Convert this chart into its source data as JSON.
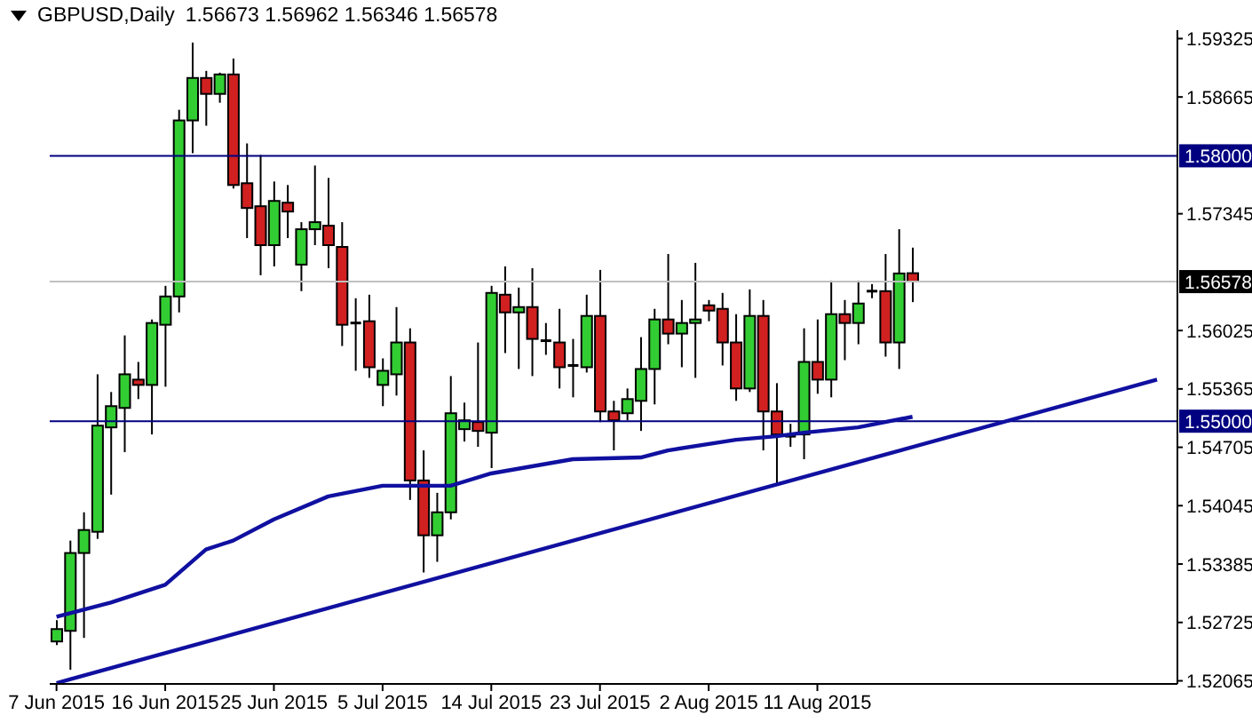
{
  "chart_data": {
    "type": "candlestick",
    "title": "GBPUSD,Daily",
    "annotations": [
      "1.56673 1.56962 1.56346 1.56578"
    ],
    "categories": [
      "7 Jun 2015",
      null,
      null,
      null,
      null,
      null,
      null,
      null,
      "16 Jun 2015",
      null,
      null,
      null,
      null,
      null,
      null,
      null,
      "25 Jun 2015",
      null,
      null,
      null,
      null,
      null,
      null,
      null,
      "5 Jul 2015",
      null,
      null,
      null,
      null,
      null,
      null,
      null,
      "14 Jul 2015",
      null,
      null,
      null,
      null,
      null,
      null,
      null,
      "23 Jul 2015",
      null,
      null,
      null,
      null,
      null,
      null,
      null,
      "2 Aug 2015",
      null,
      null,
      null,
      null,
      null,
      null,
      null,
      "11 Aug 2015",
      null,
      null,
      null,
      null,
      null,
      null,
      null,
      null,
      null,
      null,
      null,
      null,
      null,
      null,
      null,
      null,
      null,
      null,
      null,
      null,
      null,
      null,
      null,
      null,
      null,
      null
    ],
    "ohlc": [
      [
        1.5251,
        1.5275,
        1.5247,
        1.5265
      ],
      [
        1.5263,
        1.5365,
        1.5219,
        1.5351
      ],
      [
        1.5351,
        1.5397,
        1.5255,
        1.5377
      ],
      [
        1.5375,
        1.5553,
        1.5367,
        1.5495
      ],
      [
        1.5493,
        1.5533,
        1.5417,
        1.5517
      ],
      [
        1.5515,
        1.5597,
        1.5465,
        1.5553
      ],
      [
        1.5547,
        1.5567,
        1.5525,
        1.5541
      ],
      [
        1.5541,
        1.5615,
        1.5485,
        1.5611
      ],
      [
        1.5609,
        1.5653,
        1.5539,
        1.5641
      ],
      [
        1.5641,
        1.5852,
        1.5623,
        1.584
      ],
      [
        1.584,
        1.5928,
        1.5803,
        1.5888
      ],
      [
        1.5888,
        1.5896,
        1.5834,
        1.587
      ],
      [
        1.587,
        1.5894,
        1.586,
        1.5892
      ],
      [
        1.5892,
        1.591,
        1.5763,
        1.5767
      ],
      [
        1.5769,
        1.5814,
        1.5707,
        1.5741
      ],
      [
        1.5743,
        1.5801,
        1.5665,
        1.5699
      ],
      [
        1.5699,
        1.5771,
        1.5675,
        1.5749
      ],
      [
        1.5747,
        1.5767,
        1.5707,
        1.5737
      ],
      [
        1.5677,
        1.5725,
        1.5647,
        1.5717
      ],
      [
        1.5717,
        1.5789,
        1.5699,
        1.5725
      ],
      [
        1.5721,
        1.5775,
        1.5673,
        1.5699
      ],
      [
        1.5697,
        1.5725,
        1.5585,
        1.5609
      ],
      [
        1.5611,
        1.5639,
        1.5557,
        1.5611
      ],
      [
        1.5613,
        1.5643,
        1.5549,
        1.5561
      ],
      [
        1.5541,
        1.5571,
        1.5517,
        1.5557
      ],
      [
        1.5553,
        1.5629,
        1.5529,
        1.5589
      ],
      [
        1.5589,
        1.5605,
        1.5411,
        1.5433
      ],
      [
        1.5433,
        1.5467,
        1.5329,
        1.5371
      ],
      [
        1.5371,
        1.5419,
        1.5341,
        1.5397
      ],
      [
        1.5397,
        1.5551,
        1.5389,
        1.5509
      ],
      [
        1.5491,
        1.5521,
        1.5477,
        1.5501
      ],
      [
        1.5499,
        1.5589,
        1.5471,
        1.5489
      ],
      [
        1.5487,
        1.5653,
        1.5447,
        1.5645
      ],
      [
        1.5643,
        1.5675,
        1.5577,
        1.5623
      ],
      [
        1.5623,
        1.5651,
        1.5559,
        1.5629
      ],
      [
        1.5629,
        1.5673,
        1.5551,
        1.5593
      ],
      [
        1.5591,
        1.5611,
        1.5575,
        1.5591
      ],
      [
        1.5589,
        1.5627,
        1.5537,
        1.5561
      ],
      [
        1.5563,
        1.5593,
        1.5527,
        1.5563
      ],
      [
        1.5561,
        1.5643,
        1.5555,
        1.5619
      ],
      [
        1.5619,
        1.5671,
        1.5499,
        1.5511
      ],
      [
        1.5511,
        1.5523,
        1.5467,
        1.5501
      ],
      [
        1.5509,
        1.5537,
        1.5501,
        1.5525
      ],
      [
        1.5523,
        1.5595,
        1.5489,
        1.5559
      ],
      [
        1.5559,
        1.5627,
        1.5519,
        1.5615
      ],
      [
        1.5615,
        1.5689,
        1.5587,
        1.5599
      ],
      [
        1.5599,
        1.5637,
        1.5561,
        1.5611
      ],
      [
        1.5611,
        1.5679,
        1.5549,
        1.5615
      ],
      [
        1.5631,
        1.5637,
        1.5613,
        1.5625
      ],
      [
        1.5627,
        1.5645,
        1.5563,
        1.5589
      ],
      [
        1.5589,
        1.5621,
        1.5523,
        1.5537
      ],
      [
        1.5537,
        1.5649,
        1.5533,
        1.5619
      ],
      [
        1.5619,
        1.5637,
        1.5467,
        1.5511
      ],
      [
        1.5511,
        1.5543,
        1.5429,
        1.5485
      ],
      [
        1.5483,
        1.5497,
        1.5471,
        1.5483
      ],
      [
        1.5485,
        1.5605,
        1.5457,
        1.5567
      ],
      [
        1.5567,
        1.5615,
        1.5531,
        1.5547
      ],
      [
        1.5547,
        1.5659,
        1.5527,
        1.5621
      ],
      [
        1.5621,
        1.5637,
        1.5569,
        1.5611
      ],
      [
        1.5611,
        1.5659,
        1.5587,
        1.5633
      ],
      [
        1.5647,
        1.5655,
        1.5639,
        1.5647
      ],
      [
        1.5647,
        1.5689,
        1.5573,
        1.5589
      ],
      [
        1.5589,
        1.5717,
        1.5559,
        1.5667
      ],
      [
        1.56673,
        1.56962,
        1.56346,
        1.56578
      ],
      null,
      null,
      null,
      null,
      null,
      null,
      null,
      null,
      null,
      null,
      null,
      null,
      null,
      null,
      null,
      null,
      null,
      null,
      null
    ],
    "colors": [
      "#32cd32",
      "#32cd32",
      "#32cd32",
      "#32cd32",
      "#32cd32",
      "#32cd32",
      "#d02020",
      "#32cd32",
      "#32cd32",
      "#32cd32",
      "#32cd32",
      "#d02020",
      "#32cd32",
      "#d02020",
      "#d02020",
      "#d02020",
      "#32cd32",
      "#d02020",
      "#32cd32",
      "#32cd32",
      "#d02020",
      "#d02020",
      "#000000",
      "#d02020",
      "#32cd32",
      "#32cd32",
      "#d02020",
      "#d02020",
      "#32cd32",
      "#32cd32",
      "#32cd32",
      "#d02020",
      "#32cd32",
      "#d02020",
      "#32cd32",
      "#d02020",
      "#000000",
      "#d02020",
      "#000000",
      "#32cd32",
      "#d02020",
      "#d02020",
      "#32cd32",
      "#32cd32",
      "#32cd32",
      "#d02020",
      "#32cd32",
      "#32cd32",
      "#d02020",
      "#d02020",
      "#d02020",
      "#32cd32",
      "#d02020",
      "#d02020",
      "#000000",
      "#32cd32",
      "#d02020",
      "#32cd32",
      "#d02020",
      "#32cd32",
      "#000000",
      "#d02020",
      "#32cd32",
      "#d02020",
      null,
      null,
      null,
      null,
      null,
      null,
      null,
      null,
      null,
      null,
      null,
      null,
      null,
      null,
      null,
      null,
      null,
      null,
      null
    ],
    "series": [
      {
        "type": "line",
        "color": "#1010a0",
        "values": [
          1.5279,
          null,
          null,
          null,
          1.5295,
          null,
          null,
          null,
          1.5315,
          null,
          null,
          1.5355,
          null,
          1.5365,
          null,
          null,
          1.5389,
          null,
          null,
          null,
          1.5415,
          null,
          null,
          null,
          1.5427,
          null,
          null,
          null,
          null,
          1.5427,
          null,
          null,
          1.5441,
          null,
          null,
          1.5449,
          null,
          null,
          1.5457,
          null,
          null,
          null,
          null,
          1.5459,
          null,
          1.5467,
          null,
          null,
          null,
          null,
          1.5479,
          null,
          null,
          1.5483,
          null,
          1.5487,
          null,
          null,
          null,
          1.5493,
          null,
          null,
          null,
          1.5505,
          null,
          null,
          null,
          null,
          null,
          null,
          null,
          null,
          null,
          null,
          null,
          null,
          null,
          null,
          null,
          null,
          null,
          null,
          null
        ]
      },
      {
        "type": "line",
        "color": "#1010a0",
        "values": [
          1.5204,
          null,
          null,
          null,
          null,
          null,
          null,
          null,
          null,
          null,
          null,
          null,
          null,
          null,
          null,
          null,
          null,
          null,
          null,
          null,
          null,
          null,
          null,
          null,
          null,
          null,
          null,
          null,
          null,
          null,
          null,
          null,
          null,
          null,
          null,
          null,
          null,
          null,
          null,
          null,
          null,
          null,
          null,
          null,
          null,
          null,
          null,
          null,
          null,
          null,
          null,
          null,
          null,
          null,
          null,
          null,
          null,
          null,
          null,
          null,
          null,
          null,
          null,
          null,
          null,
          null,
          null,
          null,
          null,
          null,
          null,
          null,
          null,
          null,
          null,
          null,
          null,
          null,
          null,
          null,
          null,
          1.5547,
          null
        ]
      }
    ],
    "ylim": [
      1.5203,
      1.5942
    ],
    "yticks": [
      1.52065,
      1.52725,
      1.53385,
      1.54045,
      1.54705,
      1.55365,
      1.56025,
      1.57345,
      1.58665,
      1.59325
    ],
    "ref_lines": [
      {
        "axis": "y",
        "value": 1.58,
        "label": "1.58000",
        "color": "#000080"
      },
      {
        "axis": "y",
        "value": 1.55,
        "label": "1.55000",
        "color": "#000080"
      },
      {
        "axis": "y",
        "value": 1.56578,
        "label": "1.56578",
        "color": "#c0c0c0"
      }
    ]
  }
}
